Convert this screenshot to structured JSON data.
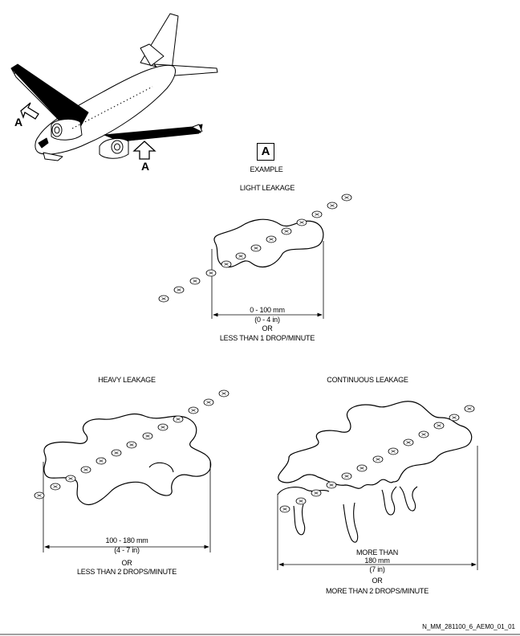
{
  "view": {
    "ref_letter": "A",
    "caption": "EXAMPLE"
  },
  "aircraft": {
    "arrow_label_left": "A",
    "arrow_label_right": "A"
  },
  "light": {
    "title": "LIGHT LEAKAGE",
    "size_mm": "0 - 100 mm",
    "size_in": "(0 - 4 in)",
    "or": "OR",
    "rate": "LESS THAN 1 DROP/MINUTE"
  },
  "heavy": {
    "title": "HEAVY LEAKAGE",
    "size_mm": "100 - 180 mm",
    "size_in": "(4 - 7 in)",
    "or": "OR",
    "rate": "LESS THAN 2 DROPS/MINUTE"
  },
  "continuous": {
    "title": "CONTINUOUS LEAKAGE",
    "more_than": "MORE THAN",
    "size_mm": "180 mm",
    "size_in": "(7 in)",
    "or": "OR",
    "rate": "MORE THAN 2 DROPS/MINUTE"
  },
  "figure_ref": "N_MM_281100_6_AEM0_01_01"
}
